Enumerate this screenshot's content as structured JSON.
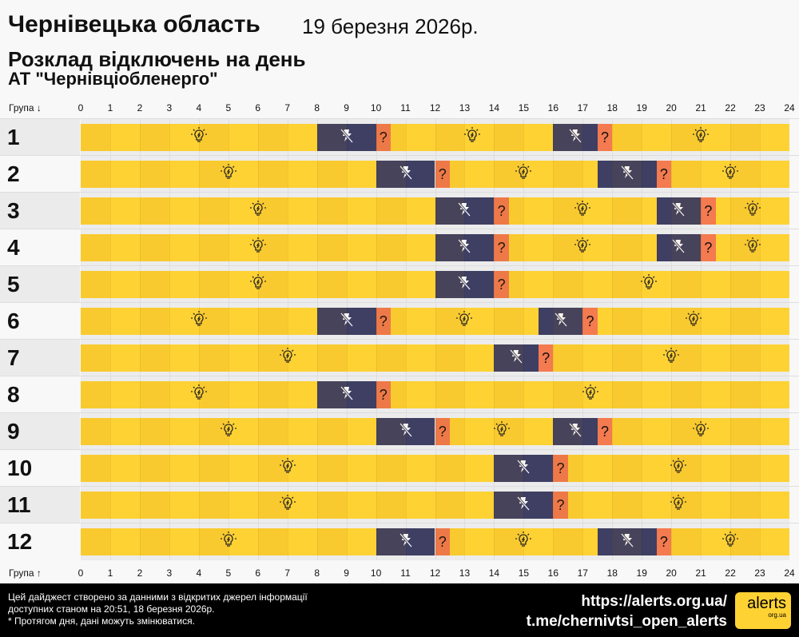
{
  "header": {
    "title": "Чернівецька область",
    "date": "19 березня 2026р.",
    "subtitle": "Розклад відключень на день",
    "company": "АТ \"Чернівціобленерго\""
  },
  "axis": {
    "top_label": "Група ↓",
    "bottom_label": "Група ↑",
    "hours": [
      "0",
      "1",
      "2",
      "3",
      "4",
      "5",
      "6",
      "7",
      "8",
      "9",
      "10",
      "11",
      "12",
      "13",
      "14",
      "15",
      "16",
      "17",
      "18",
      "19",
      "20",
      "21",
      "22",
      "23",
      "24"
    ]
  },
  "colors": {
    "on": "#ffd234",
    "off": "#3e3f63",
    "maybe": "#f47a4f"
  },
  "icons": {
    "on": "lightbulb-icon",
    "off": "power-off-icon",
    "maybe": "question-mark"
  },
  "maybe_symbol": "?",
  "groups": [
    {
      "label": "1",
      "outages": [
        [
          8,
          10
        ],
        [
          16,
          17.5
        ]
      ],
      "maybe": [
        [
          10,
          10.5
        ],
        [
          17.5,
          18
        ]
      ]
    },
    {
      "label": "2",
      "outages": [
        [
          10,
          12
        ],
        [
          17.5,
          19.5
        ]
      ],
      "maybe": [
        [
          12,
          12.5
        ],
        [
          19.5,
          20
        ]
      ]
    },
    {
      "label": "3",
      "outages": [
        [
          12,
          14
        ],
        [
          19.5,
          21
        ]
      ],
      "maybe": [
        [
          14,
          14.5
        ],
        [
          21,
          21.5
        ]
      ]
    },
    {
      "label": "4",
      "outages": [
        [
          12,
          14
        ],
        [
          19.5,
          21
        ]
      ],
      "maybe": [
        [
          14,
          14.5
        ],
        [
          21,
          21.5
        ]
      ]
    },
    {
      "label": "5",
      "outages": [
        [
          12,
          14
        ]
      ],
      "maybe": [
        [
          14,
          14.5
        ]
      ]
    },
    {
      "label": "6",
      "outages": [
        [
          8,
          10
        ],
        [
          15.5,
          17
        ]
      ],
      "maybe": [
        [
          10,
          10.5
        ],
        [
          17,
          17.5
        ]
      ]
    },
    {
      "label": "7",
      "outages": [
        [
          14,
          15.5
        ]
      ],
      "maybe": [
        [
          15.5,
          16
        ]
      ]
    },
    {
      "label": "8",
      "outages": [
        [
          8,
          10
        ]
      ],
      "maybe": [
        [
          10,
          10.5
        ]
      ]
    },
    {
      "label": "9",
      "outages": [
        [
          10,
          12
        ],
        [
          16,
          17.5
        ]
      ],
      "maybe": [
        [
          12,
          12.5
        ],
        [
          17.5,
          18
        ]
      ]
    },
    {
      "label": "10",
      "outages": [
        [
          14,
          16
        ]
      ],
      "maybe": [
        [
          16,
          16.5
        ]
      ]
    },
    {
      "label": "11",
      "outages": [
        [
          14,
          16
        ]
      ],
      "maybe": [
        [
          16,
          16.5
        ]
      ]
    },
    {
      "label": "12",
      "outages": [
        [
          10,
          12
        ],
        [
          17.5,
          19.5
        ]
      ],
      "maybe": [
        [
          12,
          12.5
        ],
        [
          19.5,
          20
        ]
      ]
    }
  ],
  "footer": {
    "note_lines": [
      "Цей дайджест створено за данними з відкритих джерел інформації",
      "доступних станом на 20:51, 18 березня 2026р.",
      "* Протягом дня, дані можуть змінюватися."
    ],
    "links": [
      "https://alerts.org.ua/",
      "t.me/chernivtsi_open_alerts"
    ],
    "logo": {
      "main": "alerts",
      "sub": "org.ua"
    }
  }
}
